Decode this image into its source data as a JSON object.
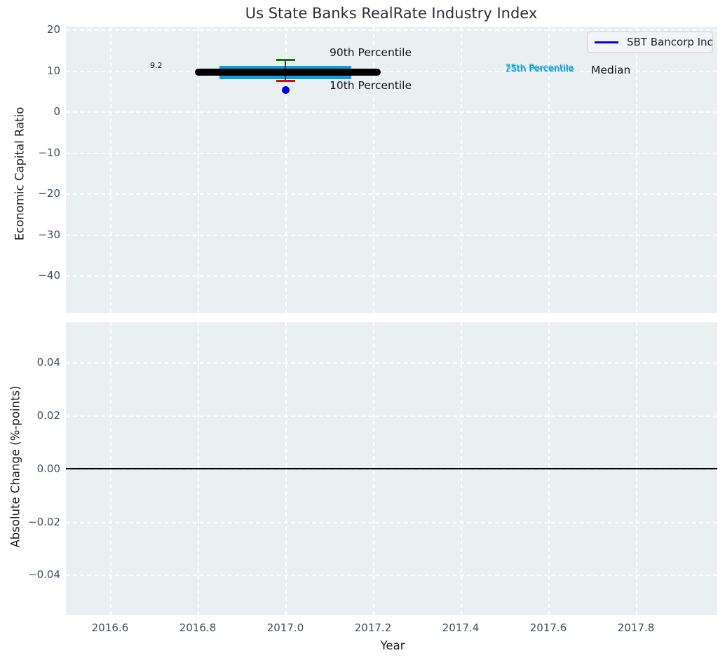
{
  "title": "Us State Banks RealRate Industry Index",
  "legend": {
    "label": "SBT Bancorp Inc",
    "line_color": "#0000ee"
  },
  "top_plot": {
    "ylabel": "Economic Capital Ratio",
    "yticks": [
      "20",
      "10",
      "0",
      "−10",
      "−20",
      "−30",
      "−40"
    ],
    "annotations": {
      "median_value": "9.2",
      "p90_label": "90th Percentile",
      "p10_label": "10th Percentile",
      "p75_label": "75th Percentile",
      "p25_label": "25th Percentile",
      "median_label": "Median"
    }
  },
  "bottom_plot": {
    "ylabel": "Absolute Change (%-points)",
    "yticks": [
      "0.04",
      "0.02",
      "0.00",
      "−0.02",
      "−0.04"
    ]
  },
  "xaxis": {
    "label": "Year",
    "ticks": [
      "2016.6",
      "2016.8",
      "2017.0",
      "2017.2",
      "2017.4",
      "2017.6",
      "2017.8"
    ]
  },
  "colors": {
    "plot_background": "#eaeff2",
    "grid": "#ffffff",
    "iqr_box": "#0aa1d8",
    "median_line": "#000000",
    "percentile_90_cap": "#007d00",
    "percentile_10_cap": "#ea0000",
    "sbt_marker": "#0000ee",
    "percentile_text": "#17a0d6",
    "tick_text": "#3d4e63"
  },
  "chart_data": [
    {
      "type": "box",
      "title": "Us State Banks RealRate Industry Index",
      "xlabel": "Year",
      "ylabel": "Economic Capital Ratio",
      "x": 2017.0,
      "median": 9.2,
      "percentile_90": 12.3,
      "percentile_75": 11.2,
      "percentile_25": 7.8,
      "percentile_10": 7.5,
      "median_line_x_range": [
        2016.79,
        2017.22
      ],
      "box_x_range": [
        2016.85,
        2017.15
      ],
      "series": [
        {
          "name": "SBT Bancorp Inc",
          "type": "scatter",
          "x": [
            2017.0
          ],
          "y": [
            5.1
          ]
        }
      ],
      "yticks": [
        20,
        10,
        0,
        -10,
        -20,
        -30,
        -40
      ],
      "ylim": [
        -50.8,
        20.7
      ],
      "grid": true,
      "legend_position": "upper right",
      "annotations": [
        "9.2",
        "90th Percentile",
        "10th Percentile",
        "75th Percentile",
        "25th Percentile",
        "Median"
      ]
    },
    {
      "type": "line",
      "xlabel": "Year",
      "ylabel": "Absolute Change (%-points)",
      "yticks": [
        0.04,
        0.02,
        0.0,
        -0.02,
        -0.04
      ],
      "xticks": [
        2016.6,
        2016.8,
        2017.0,
        2017.2,
        2017.4,
        2017.6,
        2017.8
      ],
      "series": [
        {
          "name": "zero-line",
          "x_range": [
            2016.5,
            2018.0
          ],
          "y": 0.0
        }
      ],
      "grid": true
    }
  ]
}
